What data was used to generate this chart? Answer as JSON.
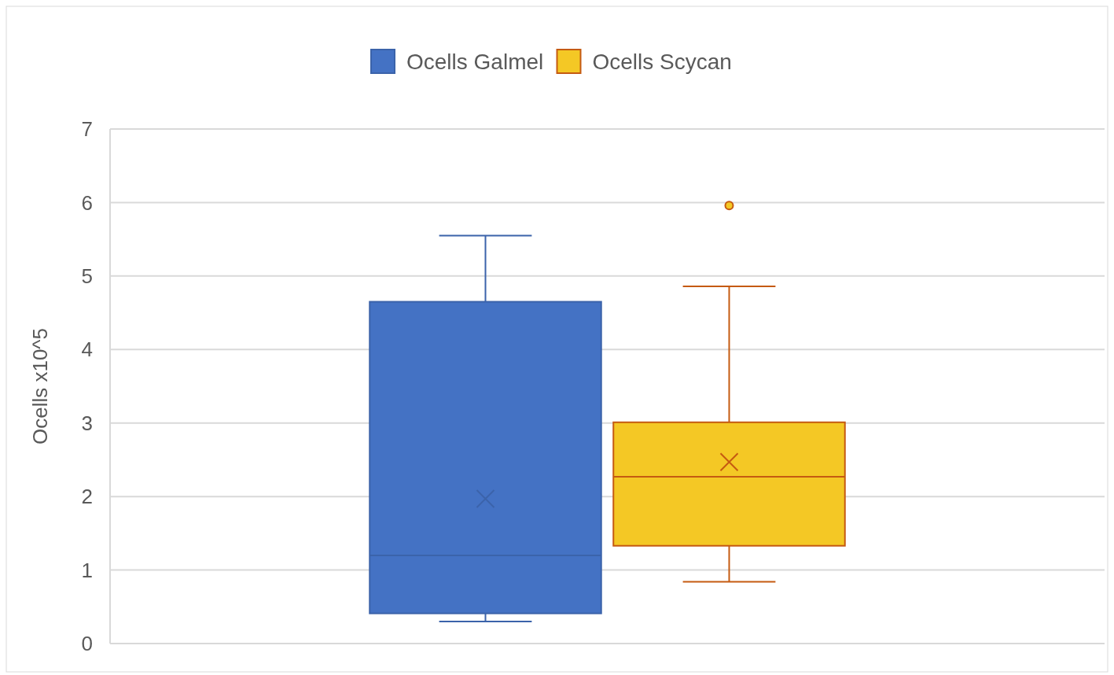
{
  "chart_data": {
    "type": "box",
    "ylabel": "Ocells x10^5",
    "categories": [
      null
    ],
    "series": [
      {
        "name": "Ocells Galmel",
        "color": "#4472c4",
        "boxes": [
          {
            "low": 0.3,
            "q1": 0.41,
            "median": 1.2,
            "q3": 4.65,
            "high": 5.55,
            "mean": 1.97
          }
        ]
      },
      {
        "name": "Ocells Scycan",
        "color": "#f4c825",
        "boxes": [
          {
            "low": 0.84,
            "q1": 1.33,
            "median": 2.27,
            "q3": 3.01,
            "high": 4.86,
            "mean": 2.47,
            "outliers": [
              5.96
            ]
          }
        ]
      }
    ],
    "ylim": [
      0,
      7
    ],
    "yticks": [
      0,
      1,
      2,
      3,
      4,
      5,
      6,
      7
    ],
    "grid": "y",
    "legend": "top",
    "marker": "cross"
  }
}
